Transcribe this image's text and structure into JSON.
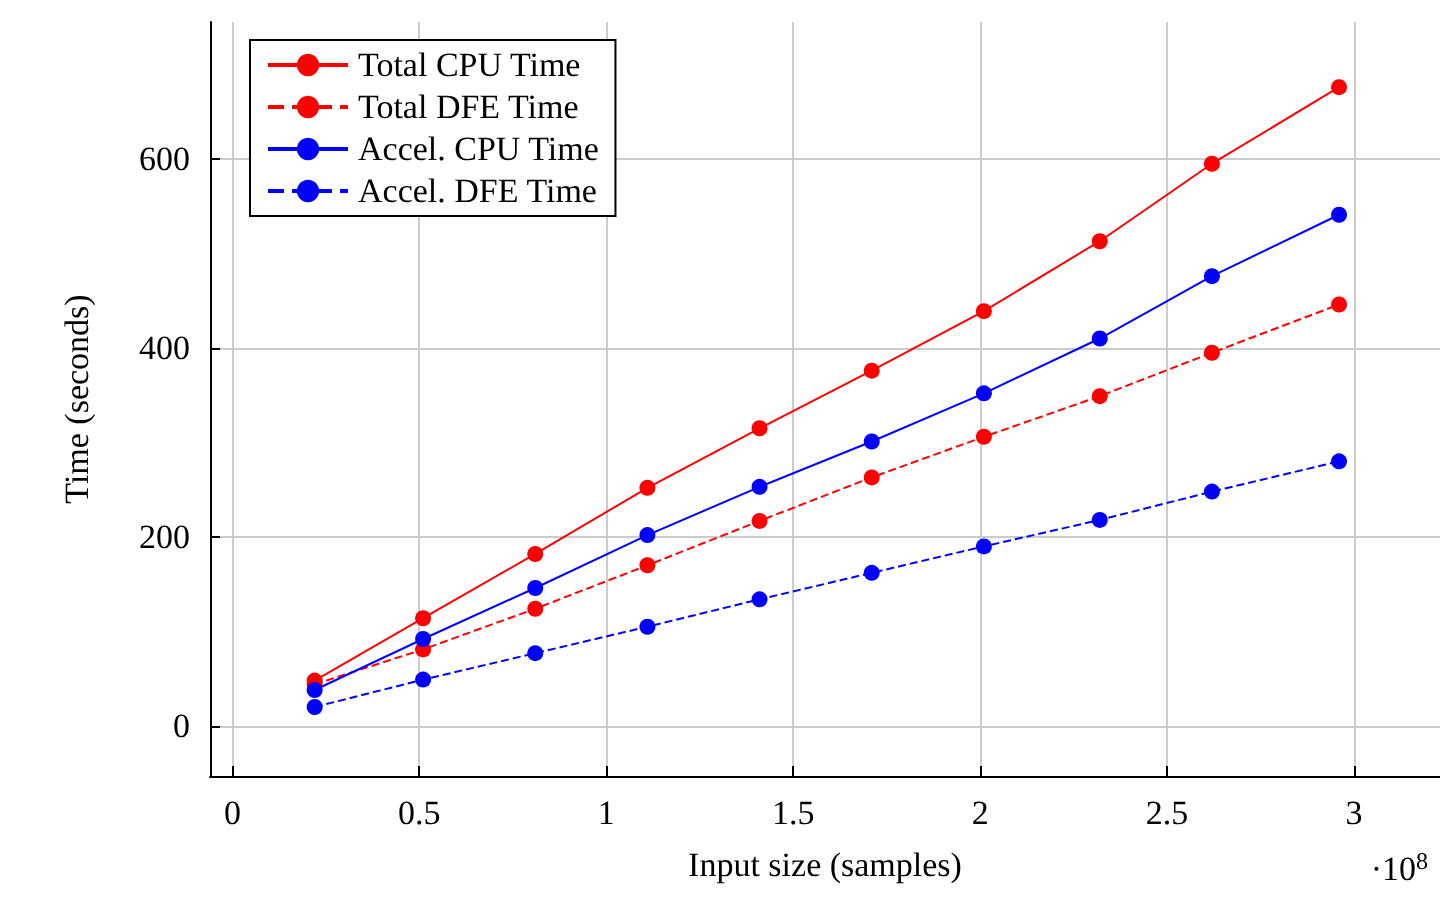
{
  "chart_data": {
    "type": "line",
    "xlabel": "Input size (samples)",
    "ylabel": "Time (seconds)",
    "x": [
      0.22,
      0.51,
      0.81,
      1.11,
      1.41,
      1.71,
      2.01,
      2.32,
      2.62,
      2.96
    ],
    "series": [
      {
        "name": "Total CPU Time",
        "color": "#ff0000",
        "line_style": "solid",
        "values": [
          48,
          114,
          182,
          252,
          315,
          376,
          439,
          513,
          595,
          676
        ]
      },
      {
        "name": "Total DFE Time",
        "color": "#ff0000",
        "line_style": "dashed",
        "values": [
          44,
          81,
          124,
          170,
          217,
          263,
          306,
          349,
          395,
          446
        ]
      },
      {
        "name": "Accel. CPU Time",
        "color": "#0000ff",
        "line_style": "solid",
        "values": [
          38,
          92,
          146,
          202,
          253,
          301,
          352,
          410,
          476,
          541
        ]
      },
      {
        "name": "Accel. DFE Time",
        "color": "#0000ff",
        "line_style": "dashed",
        "values": [
          20,
          49,
          77,
          105,
          134,
          162,
          190,
          218,
          248,
          280
        ]
      }
    ],
    "xlim": [
      -0.06,
      3.23
    ],
    "xticks": [
      0,
      0.5,
      1,
      1.5,
      2,
      2.5,
      3
    ],
    "ylim": [
      -53,
      745
    ],
    "yticks": [
      0,
      200,
      400,
      600
    ],
    "annotations": [
      "·10$^{8}$"
    ],
    "grid": true,
    "legend": "top left",
    "marker": "circle"
  }
}
